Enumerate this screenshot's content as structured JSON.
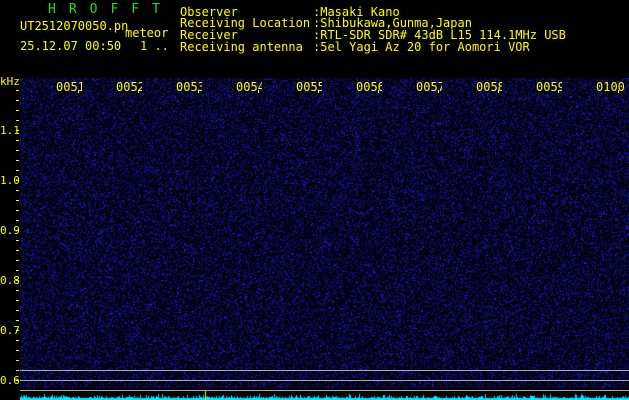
{
  "header": {
    "title": "HROFFT",
    "filename": "UT2512070050.pn",
    "mode": "meteor",
    "datetime": "25.12.07 00:50",
    "count": "1 ..",
    "info": [
      {
        "label": "Observer",
        "value": ":Masaki Kano"
      },
      {
        "label": "Receiving Location",
        "value": ":Shibukawa,Gunma,Japan"
      },
      {
        "label": "Receiver",
        "value": ":RTL-SDR SDR# 43dB L15 114.1MHz USB"
      },
      {
        "label": "Receiving antenna",
        "value": ":5el Yagi Az 20 for Aomori VOR"
      }
    ]
  },
  "axis": {
    "unit": "kHz",
    "freq_labels": [
      "1.1",
      "1.0",
      "0.9",
      "0.8",
      "0.7",
      "0.6"
    ],
    "time_labels": [
      "0051",
      "0052",
      "0053",
      "0054",
      "0055",
      "0056",
      "0057",
      "0058",
      "0059",
      "0100"
    ]
  },
  "colors": {
    "text": "#ffff00",
    "title": "#22dd22",
    "noise": "#2020c0",
    "spectrum": "#00e8ff",
    "background": "#000000"
  }
}
